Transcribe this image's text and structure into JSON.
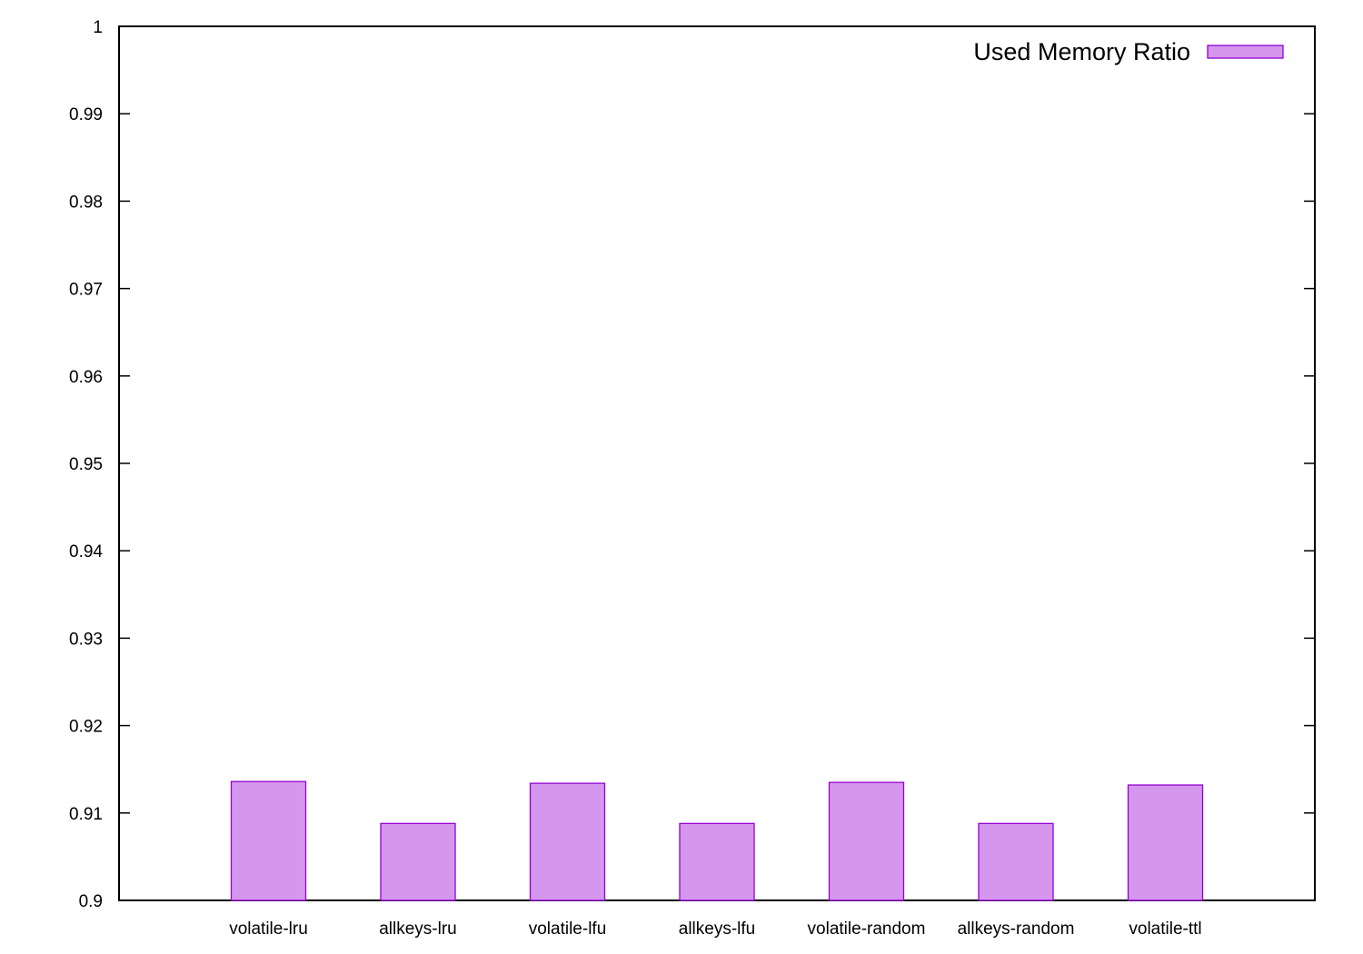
{
  "chart_data": {
    "type": "bar",
    "categories": [
      "volatile-lru",
      "allkeys-lru",
      "volatile-lfu",
      "allkeys-lfu",
      "volatile-random",
      "allkeys-random",
      "volatile-ttl"
    ],
    "series": [
      {
        "name": "Used Memory Ratio",
        "values": [
          0.9136,
          0.9088,
          0.9134,
          0.9088,
          0.9135,
          0.9088,
          0.9132
        ],
        "color": "#d596ed",
        "stroke": "#9400d3"
      }
    ],
    "title": "",
    "xlabel": "",
    "ylabel": "",
    "ylim": [
      0.9,
      1
    ],
    "yticks": [
      0.9,
      0.91,
      0.92,
      0.93,
      0.94,
      0.95,
      0.96,
      0.97,
      0.98,
      0.99,
      1
    ],
    "ytick_labels": [
      "0.9",
      "0.91",
      "0.92",
      "0.93",
      "0.94",
      "0.95",
      "0.96",
      "0.97",
      "0.98",
      "0.99",
      "1"
    ],
    "grid": false,
    "legend_position": "top-right"
  }
}
